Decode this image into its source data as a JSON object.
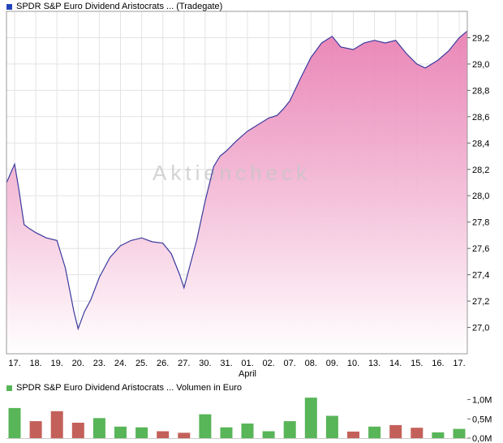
{
  "page": {
    "background": "#ffffff"
  },
  "price_chart": {
    "title": "SPDR S&P Euro Dividend Aristocrats ... (Tradegate)",
    "marker_color": "#2244bb"
  },
  "volume_chart": {
    "title": "SPDR S&P Euro Dividend Aristocrats ... Volumen in Euro",
    "marker_color": "#58b558"
  },
  "watermark": "Aktiencheck",
  "chart_data": [
    {
      "type": "area",
      "title": "SPDR S&P Euro Dividend Aristocrats ... (Tradegate)",
      "categories": [
        "17.",
        "18.",
        "19.",
        "20.",
        "23.",
        "24.",
        "25.",
        "26.",
        "27.",
        "30.",
        "31.",
        "01.",
        "02.",
        "07.",
        "08.",
        "09.",
        "10.",
        "13.",
        "14.",
        "15.",
        "16.",
        "17."
      ],
      "month_label": "April",
      "month_position_index": 11,
      "ylim": [
        26.8,
        29.4
      ],
      "y_ticks": [
        {
          "value": 29.2,
          "label": "29,2"
        },
        {
          "value": 29.0,
          "label": "29,0"
        },
        {
          "value": 28.8,
          "label": "28,8"
        },
        {
          "value": 28.6,
          "label": "28,6"
        },
        {
          "value": 28.4,
          "label": "28,4"
        },
        {
          "value": 28.2,
          "label": "28,2"
        },
        {
          "value": 28.0,
          "label": "28,0"
        },
        {
          "value": 27.8,
          "label": "27,8"
        },
        {
          "value": 27.6,
          "label": "27,6"
        },
        {
          "value": 27.4,
          "label": "27,4"
        },
        {
          "value": 27.2,
          "label": "27,2"
        },
        {
          "value": 27.0,
          "label": "27,0"
        }
      ],
      "points": [
        [
          -0.38,
          28.1
        ],
        [
          0,
          28.24
        ],
        [
          0.2,
          28.05
        ],
        [
          0.45,
          27.78
        ],
        [
          0.7,
          27.75
        ],
        [
          1,
          27.72
        ],
        [
          1.5,
          27.68
        ],
        [
          2,
          27.66
        ],
        [
          2.4,
          27.45
        ],
        [
          2.8,
          27.12
        ],
        [
          3,
          26.99
        ],
        [
          3.3,
          27.12
        ],
        [
          3.6,
          27.21
        ],
        [
          4,
          27.38
        ],
        [
          4.5,
          27.53
        ],
        [
          5,
          27.62
        ],
        [
          5.5,
          27.66
        ],
        [
          6,
          27.68
        ],
        [
          6.5,
          27.65
        ],
        [
          7,
          27.64
        ],
        [
          7.4,
          27.56
        ],
        [
          7.8,
          27.4
        ],
        [
          8,
          27.3
        ],
        [
          8.3,
          27.48
        ],
        [
          8.6,
          27.66
        ],
        [
          9,
          27.96
        ],
        [
          9.4,
          28.22
        ],
        [
          9.7,
          28.3
        ],
        [
          10,
          28.34
        ],
        [
          10.5,
          28.42
        ],
        [
          11,
          28.49
        ],
        [
          11.5,
          28.54
        ],
        [
          12,
          28.59
        ],
        [
          12.4,
          28.61
        ],
        [
          12.7,
          28.66
        ],
        [
          13,
          28.72
        ],
        [
          13.5,
          28.89
        ],
        [
          14,
          29.05
        ],
        [
          14.5,
          29.16
        ],
        [
          15,
          29.21
        ],
        [
          15.4,
          29.13
        ],
        [
          16,
          29.11
        ],
        [
          16.5,
          29.16
        ],
        [
          17,
          29.18
        ],
        [
          17.5,
          29.16
        ],
        [
          18,
          29.18
        ],
        [
          18.5,
          29.08
        ],
        [
          19,
          29.0
        ],
        [
          19.4,
          28.97
        ],
        [
          20,
          29.03
        ],
        [
          20.5,
          29.1
        ],
        [
          21,
          29.2
        ],
        [
          21.38,
          29.25
        ]
      ],
      "line_color": "#3b3b9e",
      "fill_top": "#e87ab0",
      "fill_bottom": "#ffffff",
      "grid": true,
      "legend_position": "none"
    },
    {
      "type": "bar",
      "title": "SPDR S&P Euro Dividend Aristocrats ... Volumen in Euro",
      "categories": [
        "17.",
        "18.",
        "19.",
        "20.",
        "23.",
        "24.",
        "25.",
        "26.",
        "27.",
        "30.",
        "31.",
        "01.",
        "02.",
        "07.",
        "08.",
        "09.",
        "10.",
        "13.",
        "14.",
        "15.",
        "16.",
        "17."
      ],
      "values": [
        0.78,
        0.44,
        0.7,
        0.4,
        0.52,
        0.3,
        0.28,
        0.18,
        0.14,
        0.62,
        0.28,
        0.38,
        0.18,
        0.44,
        1.05,
        0.58,
        0.17,
        0.3,
        0.34,
        0.27,
        0.15,
        0.24
      ],
      "directions": [
        "up",
        "down",
        "down",
        "down",
        "up",
        "up",
        "up",
        "down",
        "down",
        "up",
        "up",
        "up",
        "up",
        "up",
        "up",
        "up",
        "down",
        "up",
        "down",
        "down",
        "up",
        "up"
      ],
      "ylim": [
        0,
        1.18
      ],
      "y_ticks": [
        {
          "value": 1.0,
          "label": "1,0M"
        },
        {
          "value": 0.5,
          "label": "0,5M"
        },
        {
          "value": 0.0,
          "label": "0,0M"
        }
      ],
      "up_color": "#58b558",
      "down_color": "#c4605a",
      "ylabel": "Volumen in Euro"
    }
  ]
}
